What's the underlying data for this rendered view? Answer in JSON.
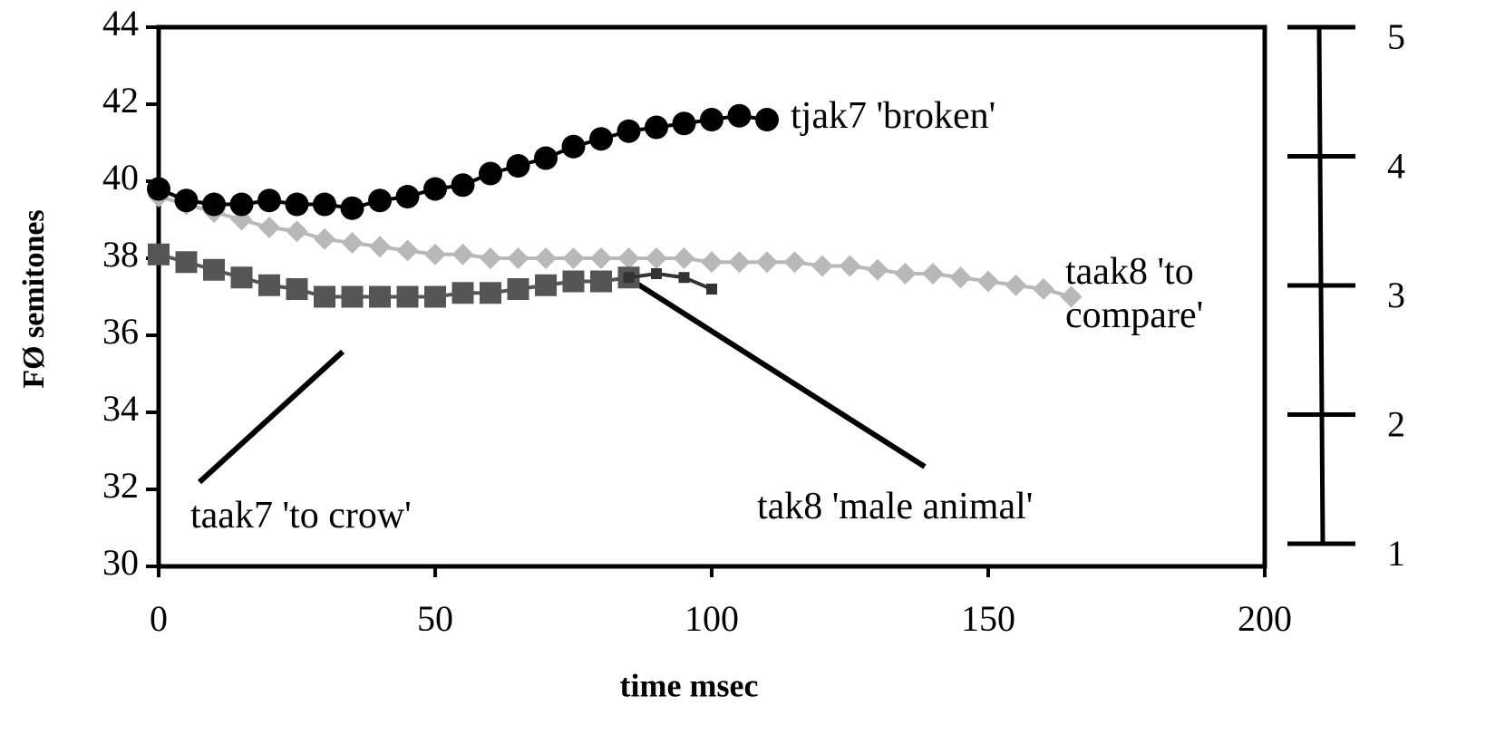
{
  "chart_data": {
    "type": "line",
    "xlabel": "time msec",
    "ylabel": "FØ semitones",
    "xlim": [
      0,
      200
    ],
    "xticks": [
      0,
      50,
      100,
      150,
      200
    ],
    "ylim": [
      30,
      44
    ],
    "yticks": [
      30,
      32,
      34,
      36,
      38,
      40,
      42,
      44
    ],
    "y2lim": [
      1,
      5
    ],
    "y2ticks": [
      1,
      2,
      3,
      4,
      5
    ],
    "series": [
      {
        "name": "tjak7 'broken'",
        "color": "#000000",
        "marker": "circle",
        "x": [
          0,
          5,
          10,
          15,
          20,
          25,
          30,
          35,
          40,
          45,
          50,
          55,
          60,
          65,
          70,
          75,
          80,
          85,
          90,
          95,
          100,
          105,
          110
        ],
        "values": [
          39.8,
          39.5,
          39.4,
          39.4,
          39.5,
          39.4,
          39.4,
          39.3,
          39.5,
          39.6,
          39.8,
          39.9,
          40.2,
          40.4,
          40.6,
          40.9,
          41.1,
          41.3,
          41.4,
          41.5,
          41.6,
          41.7,
          41.6
        ]
      },
      {
        "name": "taak8 'to compare'",
        "color": "#b8b8b8",
        "marker": "diamond",
        "x": [
          0,
          5,
          10,
          15,
          20,
          25,
          30,
          35,
          40,
          45,
          50,
          55,
          60,
          65,
          70,
          75,
          80,
          85,
          90,
          95,
          100,
          105,
          110,
          115,
          120,
          125,
          130,
          135,
          140,
          145,
          150,
          155,
          160,
          165
        ],
        "values": [
          39.6,
          39.4,
          39.2,
          39.0,
          38.8,
          38.7,
          38.5,
          38.4,
          38.3,
          38.2,
          38.1,
          38.1,
          38.0,
          38.0,
          38.0,
          38.0,
          38.0,
          38.0,
          38.0,
          38.0,
          37.9,
          37.9,
          37.9,
          37.9,
          37.8,
          37.8,
          37.7,
          37.6,
          37.6,
          37.5,
          37.4,
          37.3,
          37.2,
          37.0
        ]
      },
      {
        "name": "taak7 'to crow'",
        "color": "#555555",
        "marker": "square",
        "x": [
          0,
          5,
          10,
          15,
          20,
          25,
          30,
          35,
          40,
          45,
          50,
          55,
          60,
          65,
          70,
          75,
          80,
          85
        ],
        "values": [
          38.1,
          37.9,
          37.7,
          37.5,
          37.3,
          37.2,
          37.0,
          37.0,
          37.0,
          37.0,
          37.0,
          37.1,
          37.1,
          37.2,
          37.3,
          37.4,
          37.4,
          37.5
        ]
      },
      {
        "name": "tak8 'male animal'",
        "color": "#333333",
        "marker": "small",
        "x": [
          85,
          90,
          95,
          100
        ],
        "values": [
          37.5,
          37.6,
          37.5,
          37.2
        ]
      }
    ]
  }
}
